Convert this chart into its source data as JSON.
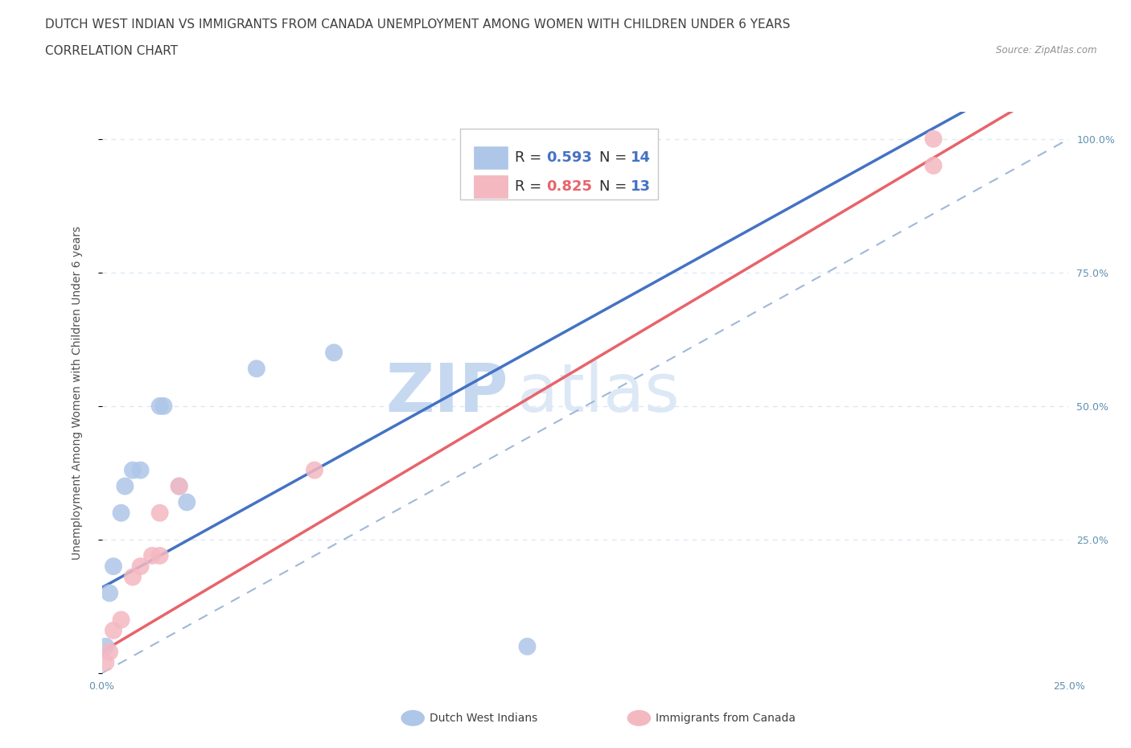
{
  "title_line1": "DUTCH WEST INDIAN VS IMMIGRANTS FROM CANADA UNEMPLOYMENT AMONG WOMEN WITH CHILDREN UNDER 6 YEARS",
  "title_line2": "CORRELATION CHART",
  "source_text": "Source: ZipAtlas.com",
  "ylabel": "Unemployment Among Women with Children Under 6 years",
  "xlim": [
    0.0,
    0.25
  ],
  "ylim": [
    0.0,
    1.05
  ],
  "dutch_west_indians": {
    "x": [
      0.001,
      0.002,
      0.003,
      0.005,
      0.006,
      0.008,
      0.01,
      0.015,
      0.016,
      0.02,
      0.022,
      0.04,
      0.06,
      0.11
    ],
    "y": [
      0.05,
      0.15,
      0.2,
      0.3,
      0.35,
      0.38,
      0.38,
      0.5,
      0.5,
      0.35,
      0.32,
      0.57,
      0.6,
      0.05
    ],
    "color": "#aec6e8",
    "R": 0.593,
    "N": 14
  },
  "immigrants_from_canada": {
    "x": [
      0.001,
      0.002,
      0.003,
      0.005,
      0.008,
      0.01,
      0.013,
      0.015,
      0.015,
      0.02,
      0.055,
      0.215,
      0.215
    ],
    "y": [
      0.02,
      0.04,
      0.08,
      0.1,
      0.18,
      0.2,
      0.22,
      0.22,
      0.3,
      0.35,
      0.38,
      0.95,
      1.0
    ],
    "color": "#f4b8c1",
    "R": 0.825,
    "N": 13
  },
  "blue_line_color": "#4472c4",
  "pink_line_color": "#e8636b",
  "dashed_line_color": "#a0b8d8",
  "watermark_color": "#dce8f5",
  "background_color": "#ffffff",
  "grid_color": "#dce8f5",
  "title_fontsize": 11,
  "axis_label_fontsize": 10,
  "tick_fontsize": 9,
  "legend_fontsize": 13
}
